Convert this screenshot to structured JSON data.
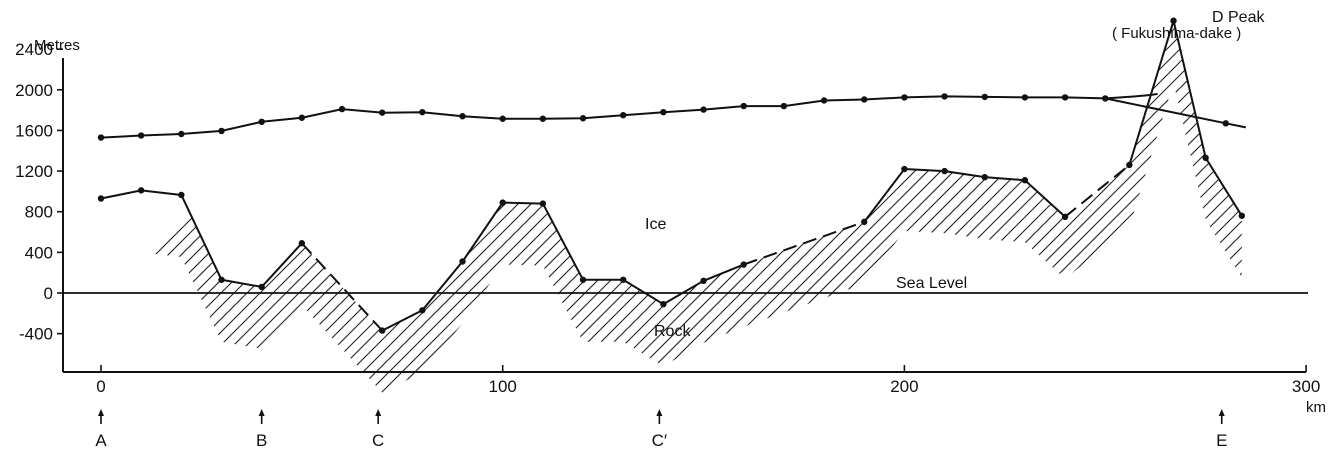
{
  "chart_data": {
    "type": "line",
    "title": "",
    "xlabel": "km",
    "ylabel": "Metres",
    "xlim": [
      -10,
      300
    ],
    "ylim": [
      -800,
      2700
    ],
    "x_ticks": [
      0,
      100,
      200,
      300
    ],
    "y_ticks": [
      2400,
      2000,
      1600,
      1200,
      800,
      400,
      0,
      -400
    ],
    "grid": false,
    "legend": "none",
    "series": [
      {
        "role": "ice-surface",
        "x": [
          0,
          10,
          20,
          30,
          40,
          50,
          60,
          70,
          80,
          90,
          100,
          110,
          120,
          130,
          140,
          150,
          160,
          170,
          180,
          190,
          200,
          210,
          220,
          230,
          240,
          250,
          280
        ],
        "y": [
          1530,
          1550,
          1565,
          1595,
          1685,
          1725,
          1810,
          1775,
          1780,
          1740,
          1715,
          1715,
          1720,
          1750,
          1780,
          1805,
          1840,
          1840,
          1895,
          1905,
          1925,
          1935,
          1930,
          1925,
          1925,
          1915,
          1670
        ]
      },
      {
        "role": "bedrock",
        "x": [
          0,
          10,
          20,
          30,
          40,
          50,
          70,
          80,
          90,
          100,
          110,
          120,
          130,
          140,
          150,
          160,
          190,
          200,
          210,
          220,
          230,
          240,
          256,
          267,
          275,
          284
        ],
        "y": [
          930,
          1010,
          965,
          130,
          60,
          490,
          -370,
          -170,
          310,
          890,
          880,
          130,
          130,
          -110,
          120,
          280,
          700,
          1220,
          1200,
          1140,
          1110,
          750,
          1260,
          2680,
          1330,
          760
        ]
      }
    ],
    "dashed_segments": [
      [
        50,
        70
      ],
      [
        160,
        190
      ],
      [
        240,
        256
      ]
    ],
    "annotations": {
      "ice": "Ice",
      "rock": "Rock",
      "sea_level": "Sea Level",
      "peak": "D Peak",
      "peak_sub": "( Fukushima-dake )"
    },
    "markers": [
      {
        "label": "A",
        "x": 0
      },
      {
        "label": "B",
        "x": 40
      },
      {
        "label": "C",
        "x": 69
      },
      {
        "label": "C′",
        "x": 139
      },
      {
        "label": "E",
        "x": 279
      }
    ]
  }
}
